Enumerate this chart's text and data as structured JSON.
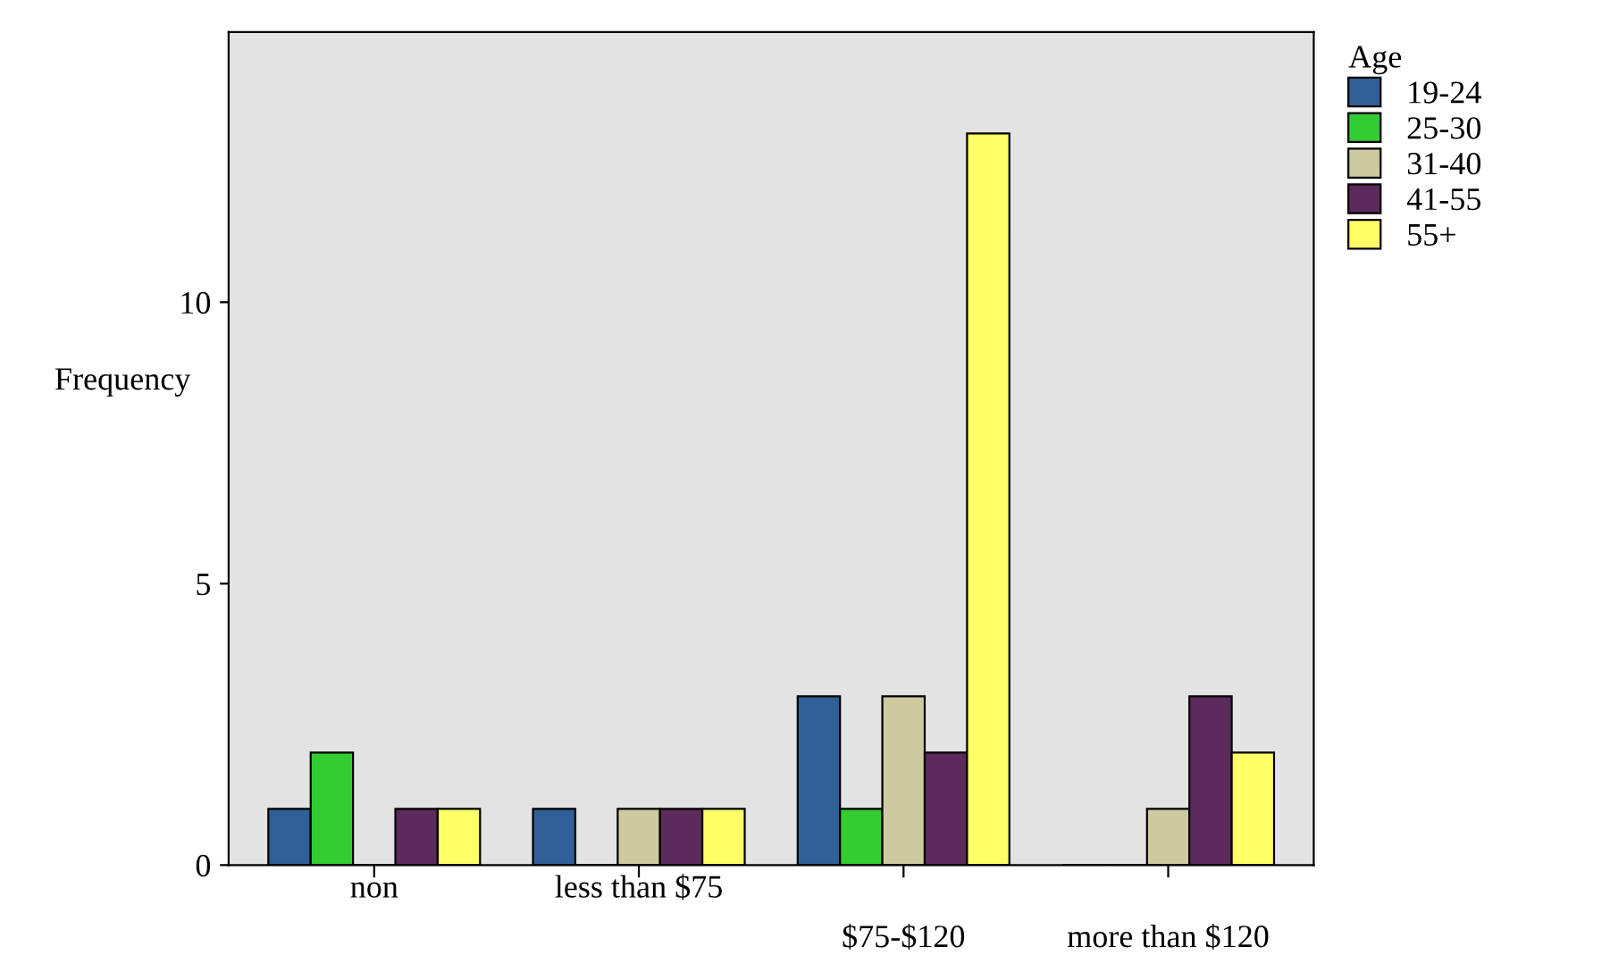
{
  "chart_data": {
    "type": "bar",
    "ylabel": "Frequency",
    "legend_title": "Age",
    "legend": "top right",
    "categories": [
      "non",
      "less than $75",
      "$75-$120",
      "more than $120"
    ],
    "ylim": [
      0,
      14.8
    ],
    "yticks": [
      0,
      5,
      10
    ],
    "grid": false,
    "series": [
      {
        "name": "19-24",
        "color": "#2f5f96",
        "values": [
          1,
          1,
          3,
          0
        ]
      },
      {
        "name": "25-30",
        "color": "#33cc33",
        "values": [
          2,
          0,
          1,
          0
        ]
      },
      {
        "name": "31-40",
        "color": "#cdc9a0",
        "values": [
          0,
          1,
          3,
          1
        ]
      },
      {
        "name": "41-55",
        "color": "#5c2a5c",
        "values": [
          1,
          1,
          2,
          3
        ]
      },
      {
        "name": "55+",
        "color": "#ffff66",
        "values": [
          1,
          1,
          13,
          2
        ]
      }
    ]
  }
}
